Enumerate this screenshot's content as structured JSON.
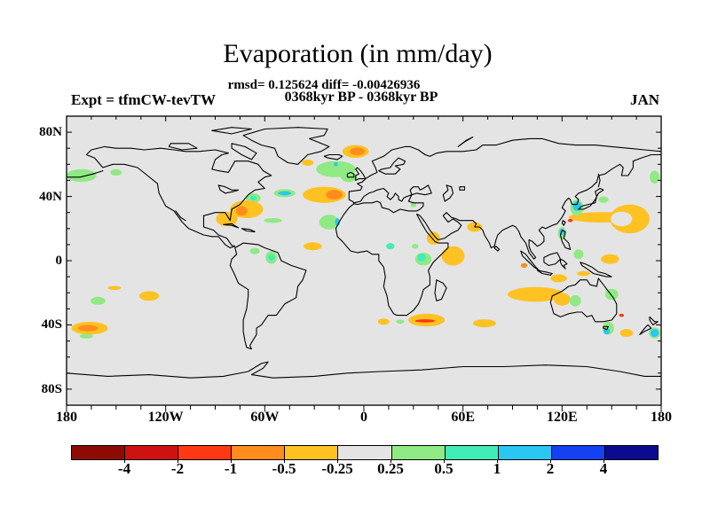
{
  "title": "Evaporation (in mm/day)",
  "stats_line": "rmsd= 0.125624 diff= -0.00426936",
  "comparison_line": "0368kyr BP - 0368kyr BP",
  "experiment_label": "Expt = tfmCW-tevTW",
  "month_label": "JAN",
  "map": {
    "background_color": "#e4e4e4",
    "coastline_color": "#000000",
    "lat_tick_step_deg": 10,
    "lon_tick_step_deg": 15,
    "lat_labels": [
      {
        "text": "80N",
        "lat": 80
      },
      {
        "text": "40N",
        "lat": 40
      },
      {
        "text": "0",
        "lat": 0
      },
      {
        "text": "40S",
        "lat": -40
      },
      {
        "text": "80S",
        "lat": -80
      }
    ],
    "lon_labels": [
      {
        "text": "180",
        "lon": -180
      },
      {
        "text": "120W",
        "lon": -120
      },
      {
        "text": "60W",
        "lon": -60
      },
      {
        "text": "0",
        "lon": 0
      },
      {
        "text": "60E",
        "lon": 60
      },
      {
        "text": "120E",
        "lon": 120
      },
      {
        "text": "180",
        "lon": 180
      }
    ]
  },
  "colorbar": {
    "tick_labels": [
      "-4",
      "-2",
      "-1",
      "-0.5",
      "-0.25",
      "0.25",
      "0.5",
      "1",
      "2",
      "4"
    ],
    "colors": [
      "#8e0b04",
      "#cf1211",
      "#fe3812",
      "#ff8d1d",
      "#ffc222",
      "#e4e4e4",
      "#90ea84",
      "#42ecb7",
      "#29c7f1",
      "#1441f4",
      "#0b0b8f"
    ]
  },
  "chart_data": {
    "type": "heatmap",
    "title": "Evaporation (in mm/day)",
    "units": "mm/day",
    "rmsd": 0.125624,
    "diff": -0.00426936,
    "experiment": "tfmCW-tevTW",
    "period": "0368kyr BP - 0368kyr BP",
    "month": "JAN",
    "contour_levels": [
      -4,
      -2,
      -1,
      -0.5,
      -0.25,
      0.25,
      0.5,
      1,
      2,
      4
    ],
    "lon_range": [
      -180,
      180
    ],
    "lat_range": [
      -90,
      90
    ],
    "bin_ranges": [
      "< -4",
      "-4 to -2",
      "-2 to -1",
      "-1 to -0.5",
      "-0.5 to -0.25",
      "-0.25 to 0.25 (neutral)",
      "0.25 to 0.5",
      "0.5 to 1",
      "1 to 2",
      "2 to 4",
      "> 4"
    ],
    "anomaly_regions": {
      "columns": [
        "lon",
        "lat",
        "w_deg",
        "h_deg",
        "bin"
      ],
      "rows": [
        [
          -5,
          68,
          16,
          8,
          4
        ],
        [
          -4,
          68,
          9,
          5,
          3
        ],
        [
          -34,
          61,
          7,
          4,
          4
        ],
        [
          -17,
          57,
          24,
          10,
          6
        ],
        [
          -9,
          52,
          10,
          6,
          6
        ],
        [
          -17,
          60,
          2.5,
          2.5,
          8
        ],
        [
          -24,
          41,
          26,
          10,
          4
        ],
        [
          -18,
          41,
          10,
          6,
          3
        ],
        [
          -48,
          42,
          13,
          5,
          6
        ],
        [
          -48,
          42,
          8,
          2.5,
          8
        ],
        [
          -67,
          39,
          9,
          6,
          6
        ],
        [
          -67,
          39,
          4,
          3,
          7
        ],
        [
          -71,
          32,
          20,
          11,
          4
        ],
        [
          -74,
          31,
          7,
          6,
          3
        ],
        [
          -83,
          26,
          13,
          9,
          4
        ],
        [
          -55,
          25,
          11,
          3,
          6
        ],
        [
          -21,
          24,
          12,
          9,
          6
        ],
        [
          -16,
          24,
          3,
          5,
          8
        ],
        [
          -31,
          9,
          11,
          5,
          4
        ],
        [
          -66,
          6,
          6,
          4,
          6
        ],
        [
          -56,
          2,
          7,
          8,
          6
        ],
        [
          -56,
          2,
          4,
          4,
          7
        ],
        [
          -171,
          53,
          18,
          8,
          6
        ],
        [
          -150,
          55,
          7,
          4,
          6
        ],
        [
          -130,
          -22,
          12,
          6,
          4
        ],
        [
          -151,
          -17,
          8,
          2.5,
          4
        ],
        [
          -161,
          -25,
          9,
          5,
          6
        ],
        [
          -166,
          -42,
          22,
          8,
          4
        ],
        [
          -167,
          -42,
          12,
          4,
          3
        ],
        [
          -168,
          -47,
          8,
          3,
          6
        ],
        [
          30,
          35,
          3.5,
          3.5,
          6
        ],
        [
          42,
          14,
          8,
          8,
          4
        ],
        [
          67,
          21,
          9,
          6,
          4
        ],
        [
          54,
          3,
          14,
          12,
          4
        ],
        [
          36,
          1,
          10,
          8,
          6
        ],
        [
          35,
          2,
          5,
          5,
          7
        ],
        [
          16,
          9,
          5,
          4,
          7
        ],
        [
          31,
          9,
          4,
          3,
          6
        ],
        [
          104,
          -21,
          34,
          9,
          4
        ],
        [
          120,
          -24,
          10,
          8,
          4
        ],
        [
          38,
          -37,
          22,
          8,
          4
        ],
        [
          37,
          -37.5,
          12,
          2,
          2
        ],
        [
          12,
          -38,
          7,
          4,
          4
        ],
        [
          22,
          -38,
          5,
          2.5,
          6
        ],
        [
          73,
          -39,
          14,
          5,
          4
        ],
        [
          97,
          -3,
          4,
          3,
          3
        ],
        [
          120,
          17,
          5,
          8,
          6
        ],
        [
          120,
          18,
          3,
          4,
          8
        ],
        [
          130,
          4,
          6,
          6,
          6
        ],
        [
          149,
          1,
          11,
          6,
          4
        ],
        [
          118,
          -11,
          10,
          5,
          4
        ],
        [
          133,
          -8,
          8,
          3,
          4
        ],
        [
          128,
          -25,
          7,
          7,
          6
        ],
        [
          150,
          -21,
          8,
          7,
          6
        ],
        [
          148,
          -42,
          7,
          8,
          6
        ],
        [
          147,
          -44,
          4,
          4,
          8
        ],
        [
          156,
          -34,
          3,
          2,
          2
        ],
        [
          159,
          -45,
          8,
          5,
          4
        ],
        [
          176,
          -45,
          7,
          7,
          6
        ],
        [
          176,
          -45,
          5,
          5,
          8
        ],
        [
          144,
          27,
          40,
          6.5,
          4
        ],
        [
          125,
          25,
          3,
          2,
          2
        ],
        [
          161,
          26,
          24,
          18,
          4
        ],
        [
          156,
          26,
          13,
          9,
          5
        ],
        [
          129,
          33,
          8,
          10,
          6
        ],
        [
          129,
          34,
          5,
          6,
          8
        ],
        [
          145,
          38,
          6,
          4,
          6
        ],
        [
          176,
          52,
          6,
          8,
          6
        ]
      ]
    }
  }
}
